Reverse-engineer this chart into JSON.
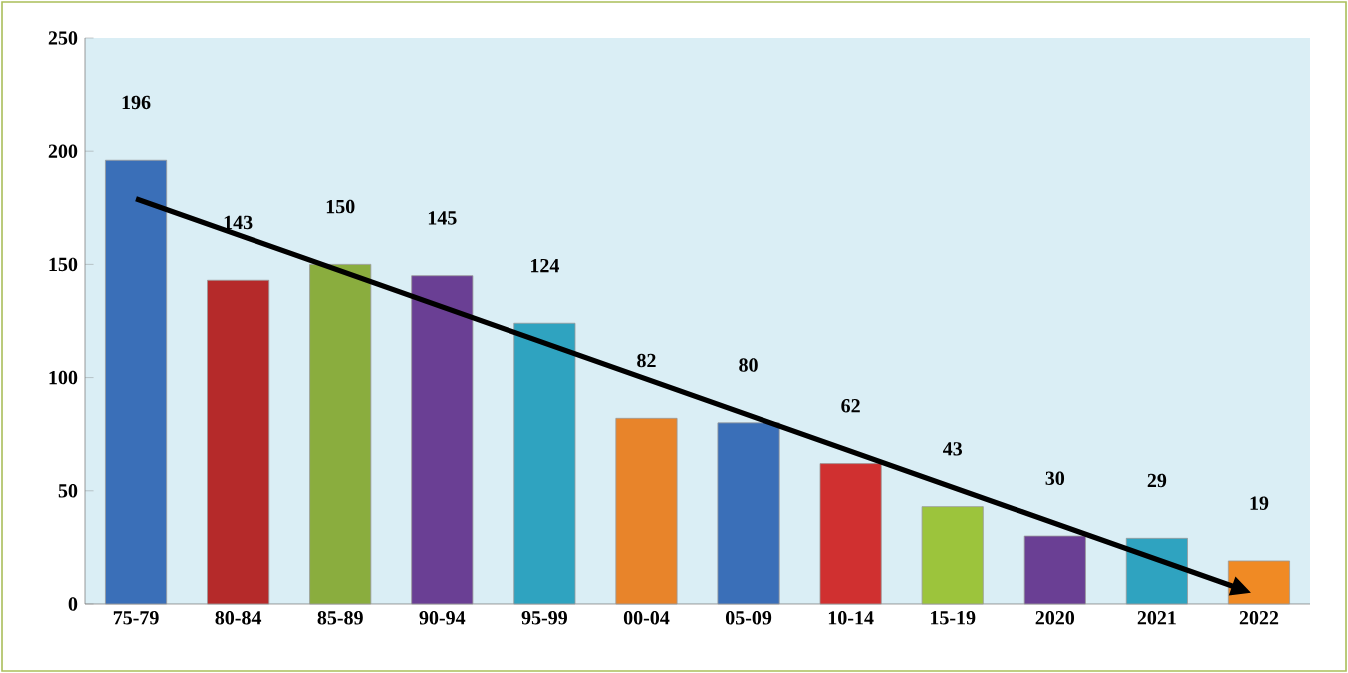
{
  "chart_data": {
    "type": "bar",
    "categories": [
      "75-79",
      "80-84",
      "85-89",
      "90-94",
      "95-99",
      "00-04",
      "05-09",
      "10-14",
      "15-19",
      "2020",
      "2021",
      "2022"
    ],
    "values": [
      196,
      143,
      150,
      145,
      124,
      82,
      80,
      62,
      43,
      30,
      29,
      19
    ],
    "colors": [
      "#3a6fb8",
      "#b52a2a",
      "#8aad3e",
      "#6a3f94",
      "#2fa3c0",
      "#e8842a",
      "#3a6fb8",
      "#d03030",
      "#9cc43c",
      "#6a3f94",
      "#2fa3c0",
      "#f08a24"
    ],
    "data_labels": true,
    "ylim": [
      0,
      250
    ],
    "yticks": [
      0,
      50,
      100,
      150,
      200,
      250
    ],
    "grid": false
  }
}
